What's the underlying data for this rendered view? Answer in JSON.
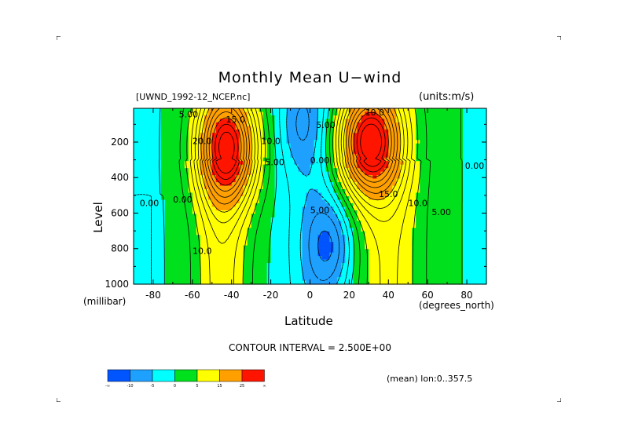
{
  "chart_data": {
    "type": "heatmap",
    "title": "Monthly Mean U−wind",
    "dataset_label": "[UWND_1992-12_NCEP.nc]",
    "units_label": "(units:m/s)",
    "xlabel": "Latitude",
    "x_units": "(degrees_north)",
    "ylabel": "Level",
    "y_units": "(millibar)",
    "xlim": [
      -90,
      90
    ],
    "ylim": [
      1000,
      10
    ],
    "x_ticks": [
      -80,
      -60,
      -40,
      -20,
      0,
      20,
      40,
      60,
      80
    ],
    "y_ticks": [
      200,
      400,
      600,
      800,
      1000
    ],
    "contour_interval_text": "CONTOUR INTERVAL = 2.500E+00",
    "mean_note": "(mean) lon:0..357.5",
    "jets": [
      {
        "lat": -42,
        "level": 230,
        "peak": 27,
        "lat_width": 15,
        "p_width": 300
      },
      {
        "lat": 30,
        "level": 200,
        "peak": 30,
        "lat_width": 16,
        "p_width": 290
      }
    ],
    "easterlies": [
      {
        "lat": 10,
        "level": 780,
        "min": -8
      },
      {
        "lat": -5,
        "level": 100,
        "min": -5
      }
    ],
    "contour_labels": [
      {
        "text": "20.0",
        "lat": -55,
        "level": 210
      },
      {
        "text": "15.0",
        "lat": -38,
        "level": 90
      },
      {
        "text": "10.0",
        "lat": -20,
        "level": 210
      },
      {
        "text": "5.00",
        "lat": -18,
        "level": 330
      },
      {
        "text": "5.00",
        "lat": -62,
        "level": 60
      },
      {
        "text": "0.00",
        "lat": -65,
        "level": 540
      },
      {
        "text": "0.00",
        "lat": -82,
        "level": 560
      },
      {
        "text": "10.0",
        "lat": -55,
        "level": 830
      },
      {
        "text": "0.00",
        "lat": 5,
        "level": 320
      },
      {
        "text": "5.00",
        "lat": 5,
        "level": 600
      },
      {
        "text": "5.00",
        "lat": 8,
        "level": 120
      },
      {
        "text": "10.0",
        "lat": 33,
        "level": 50
      },
      {
        "text": "15.0",
        "lat": 40,
        "level": 510
      },
      {
        "text": "10.0",
        "lat": 55,
        "level": 560
      },
      {
        "text": "5.00",
        "lat": 67,
        "level": 610
      },
      {
        "text": "0.00",
        "lat": 84,
        "level": 350
      }
    ],
    "colorbar": {
      "colors": [
        "#0055ff",
        "#1ea0ff",
        "#00ffff",
        "#00e01c",
        "#ffff00",
        "#ffa000",
        "#ff1400"
      ],
      "labels": [
        "-∞",
        "-10",
        "-5",
        "0",
        "5",
        "15",
        "25",
        "∞"
      ]
    }
  }
}
